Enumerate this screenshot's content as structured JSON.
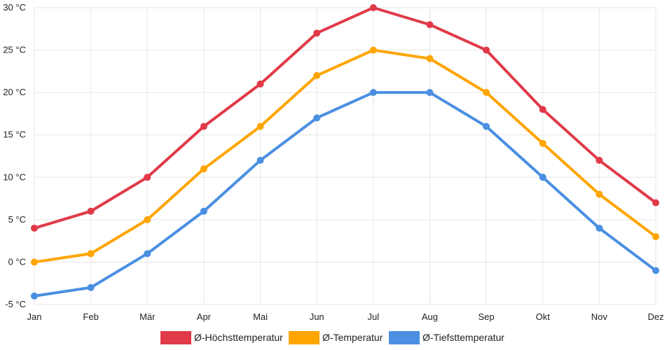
{
  "chart_data": {
    "type": "line",
    "title": "",
    "xlabel": "",
    "ylabel": "",
    "categories": [
      "Jan",
      "Feb",
      "Mär",
      "Apr",
      "Mai",
      "Jun",
      "Jul",
      "Aug",
      "Sep",
      "Okt",
      "Nov",
      "Dez"
    ],
    "ylim": [
      -5,
      30
    ],
    "y_ticks": [
      -5,
      0,
      5,
      10,
      15,
      20,
      25,
      30
    ],
    "y_tick_labels": [
      "-5 °C",
      "0 °C",
      "5 °C",
      "10 °C",
      "15 °C",
      "20 °C",
      "25 °C",
      "30 °C"
    ],
    "grid": true,
    "legend_position": "bottom-center",
    "series": [
      {
        "name": "Ø-Höchsttemperatur",
        "color": "#e03a48",
        "values": [
          4,
          6,
          10,
          16,
          21,
          27,
          30,
          28,
          25,
          18,
          12,
          7
        ]
      },
      {
        "name": "Ø-Temperatur",
        "color": "#ffa500",
        "values": [
          0,
          1,
          5,
          11,
          16,
          22,
          25,
          24,
          20,
          14,
          8,
          3
        ]
      },
      {
        "name": "Ø-Tiefsttemperatur",
        "color": "#4a8fe2",
        "values": [
          -4,
          -3,
          1,
          6,
          12,
          17,
          20,
          20,
          16,
          10,
          4,
          -1
        ]
      }
    ]
  }
}
